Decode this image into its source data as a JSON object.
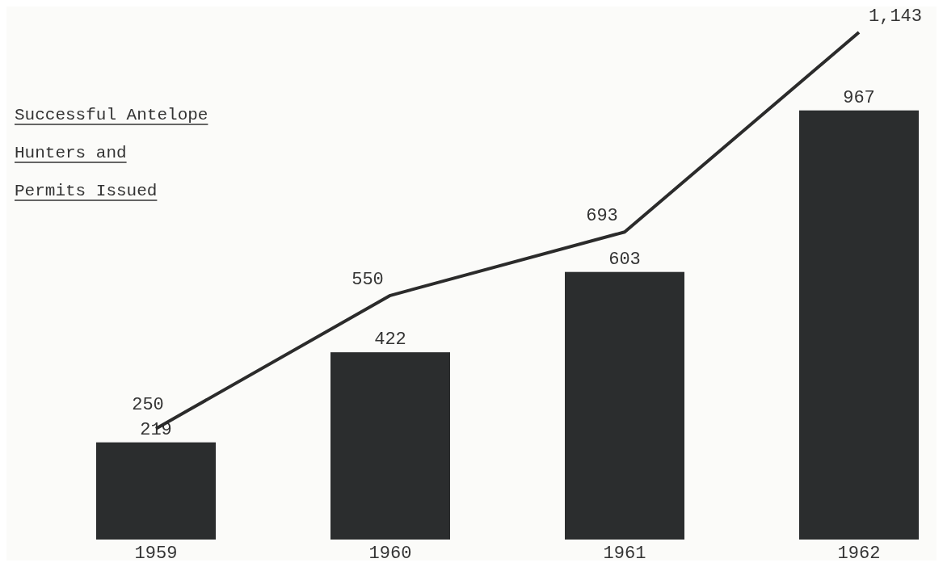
{
  "chart_data": {
    "type": "bar",
    "title": "Successful Antelope Hunters and Permits Issued",
    "categories": [
      "1959",
      "1960",
      "1961",
      "1962"
    ],
    "series": [
      {
        "color": "#2b2d2e",
        "values": [
          219,
          422,
          603,
          967
        ]
      },
      {
        "type": "line",
        "color": "#2b2b2b",
        "values": [
          250,
          550,
          693,
          1143
        ],
        "value_labels": [
          "250",
          "550",
          "693",
          "1,143"
        ]
      }
    ],
    "data_labels": true,
    "marker": "none"
  }
}
